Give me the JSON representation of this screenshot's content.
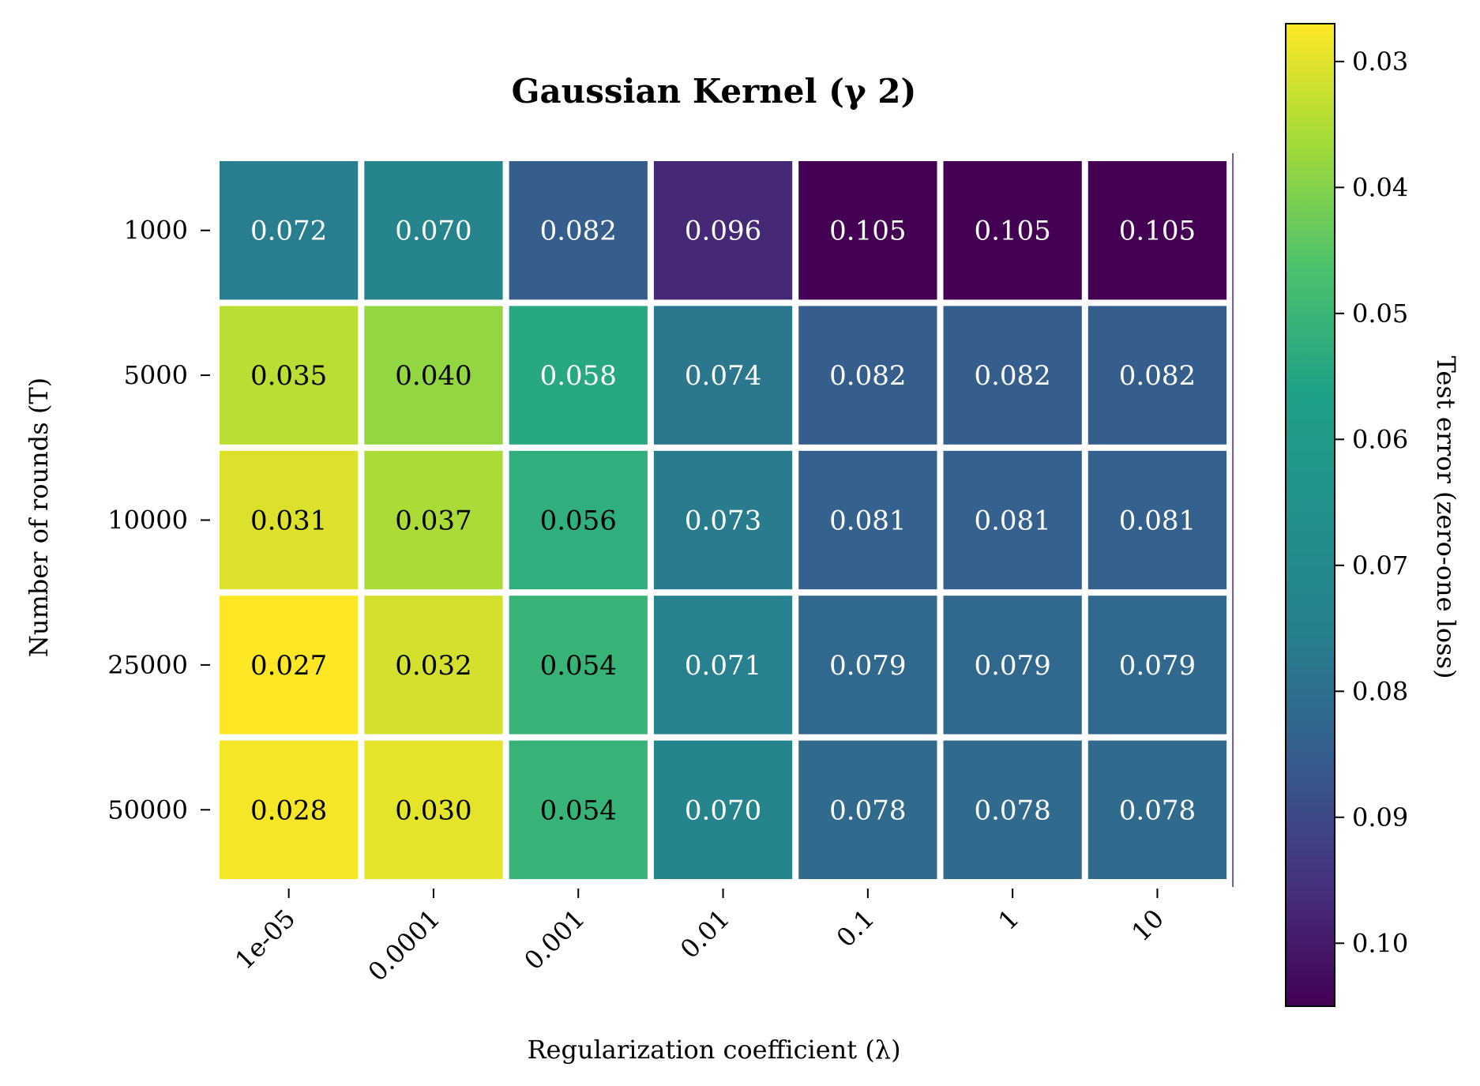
{
  "chart_data": {
    "type": "heatmap",
    "title": "Gaussian Kernel (γ 2)",
    "xlabel": "Regularization coefficient (λ)",
    "ylabel": "Number of rounds (T)",
    "x_categories": [
      "1e-05",
      "0.0001",
      "0.001",
      "0.01",
      "0.1",
      "1",
      "10"
    ],
    "y_categories": [
      "1000",
      "5000",
      "10000",
      "25000",
      "50000"
    ],
    "values": [
      [
        0.072,
        0.07,
        0.082,
        0.096,
        0.105,
        0.105,
        0.105
      ],
      [
        0.035,
        0.04,
        0.058,
        0.074,
        0.082,
        0.082,
        0.082
      ],
      [
        0.031,
        0.037,
        0.056,
        0.073,
        0.081,
        0.081,
        0.081
      ],
      [
        0.027,
        0.032,
        0.054,
        0.071,
        0.079,
        0.079,
        0.079
      ],
      [
        0.028,
        0.03,
        0.054,
        0.07,
        0.078,
        0.078,
        0.078
      ]
    ],
    "value_labels": [
      [
        "0.072",
        "0.070",
        "0.082",
        "0.096",
        "0.105",
        "0.105",
        "0.105"
      ],
      [
        "0.035",
        "0.040",
        "0.058",
        "0.074",
        "0.082",
        "0.082",
        "0.082"
      ],
      [
        "0.031",
        "0.037",
        "0.056",
        "0.073",
        "0.081",
        "0.081",
        "0.081"
      ],
      [
        "0.027",
        "0.032",
        "0.054",
        "0.071",
        "0.079",
        "0.079",
        "0.079"
      ],
      [
        "0.028",
        "0.030",
        "0.054",
        "0.070",
        "0.078",
        "0.078",
        "0.078"
      ]
    ],
    "colormap": "viridis_r",
    "colorbar": {
      "label": "Test error (zero-one loss)",
      "range": [
        0.027,
        0.105
      ],
      "ticks": [
        "0.03",
        "0.04",
        "0.05",
        "0.06",
        "0.07",
        "0.08",
        "0.09",
        "0.10"
      ],
      "tick_values": [
        0.03,
        0.04,
        0.05,
        0.06,
        0.07,
        0.08,
        0.09,
        0.1
      ]
    },
    "grid": false
  }
}
